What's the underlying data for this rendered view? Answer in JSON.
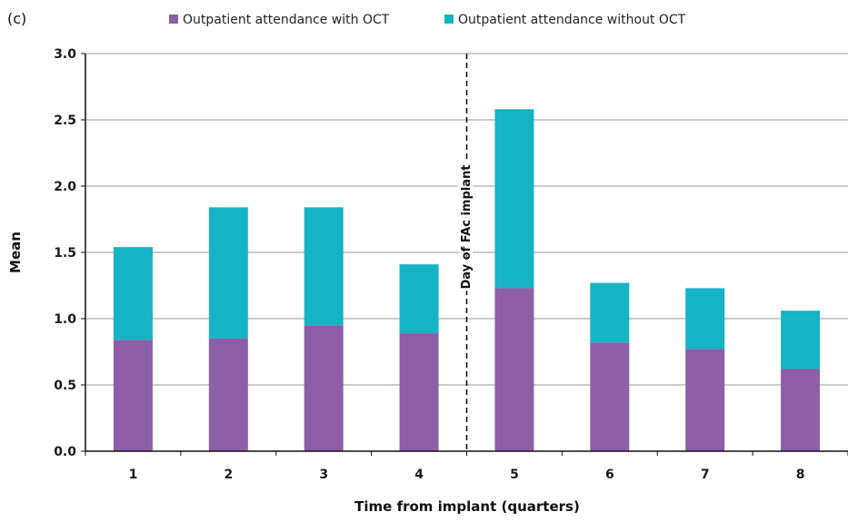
{
  "panel_label": "(c)",
  "colors": {
    "with_oct": "#8c5fa6",
    "without_oct": "#16b3c4",
    "grid": "#9a9a9a",
    "axis": "#111111"
  },
  "chart_data": {
    "type": "bar",
    "stacked": true,
    "categories": [
      "1",
      "2",
      "3",
      "4",
      "5",
      "6",
      "7",
      "8"
    ],
    "series": [
      {
        "name": "Outpatient attendance with OCT",
        "values": [
          0.84,
          0.85,
          0.95,
          0.89,
          1.23,
          0.82,
          0.77,
          0.62
        ]
      },
      {
        "name": "Outpatient attendance without OCT",
        "values": [
          0.7,
          0.99,
          0.89,
          0.52,
          1.35,
          0.45,
          0.46,
          0.44
        ]
      }
    ],
    "xlabel": "Time from implant (quarters)",
    "ylabel": "Mean",
    "ylim": [
      0,
      3.0
    ],
    "yticks": [
      "0.0",
      "0.5",
      "1.0",
      "1.5",
      "2.0",
      "2.5",
      "3.0"
    ],
    "grid": true,
    "legend_position": "top",
    "annotation": {
      "text": "Day of FAc implant",
      "between_categories": [
        "4",
        "5"
      ],
      "style": "dashed vertical line"
    }
  }
}
